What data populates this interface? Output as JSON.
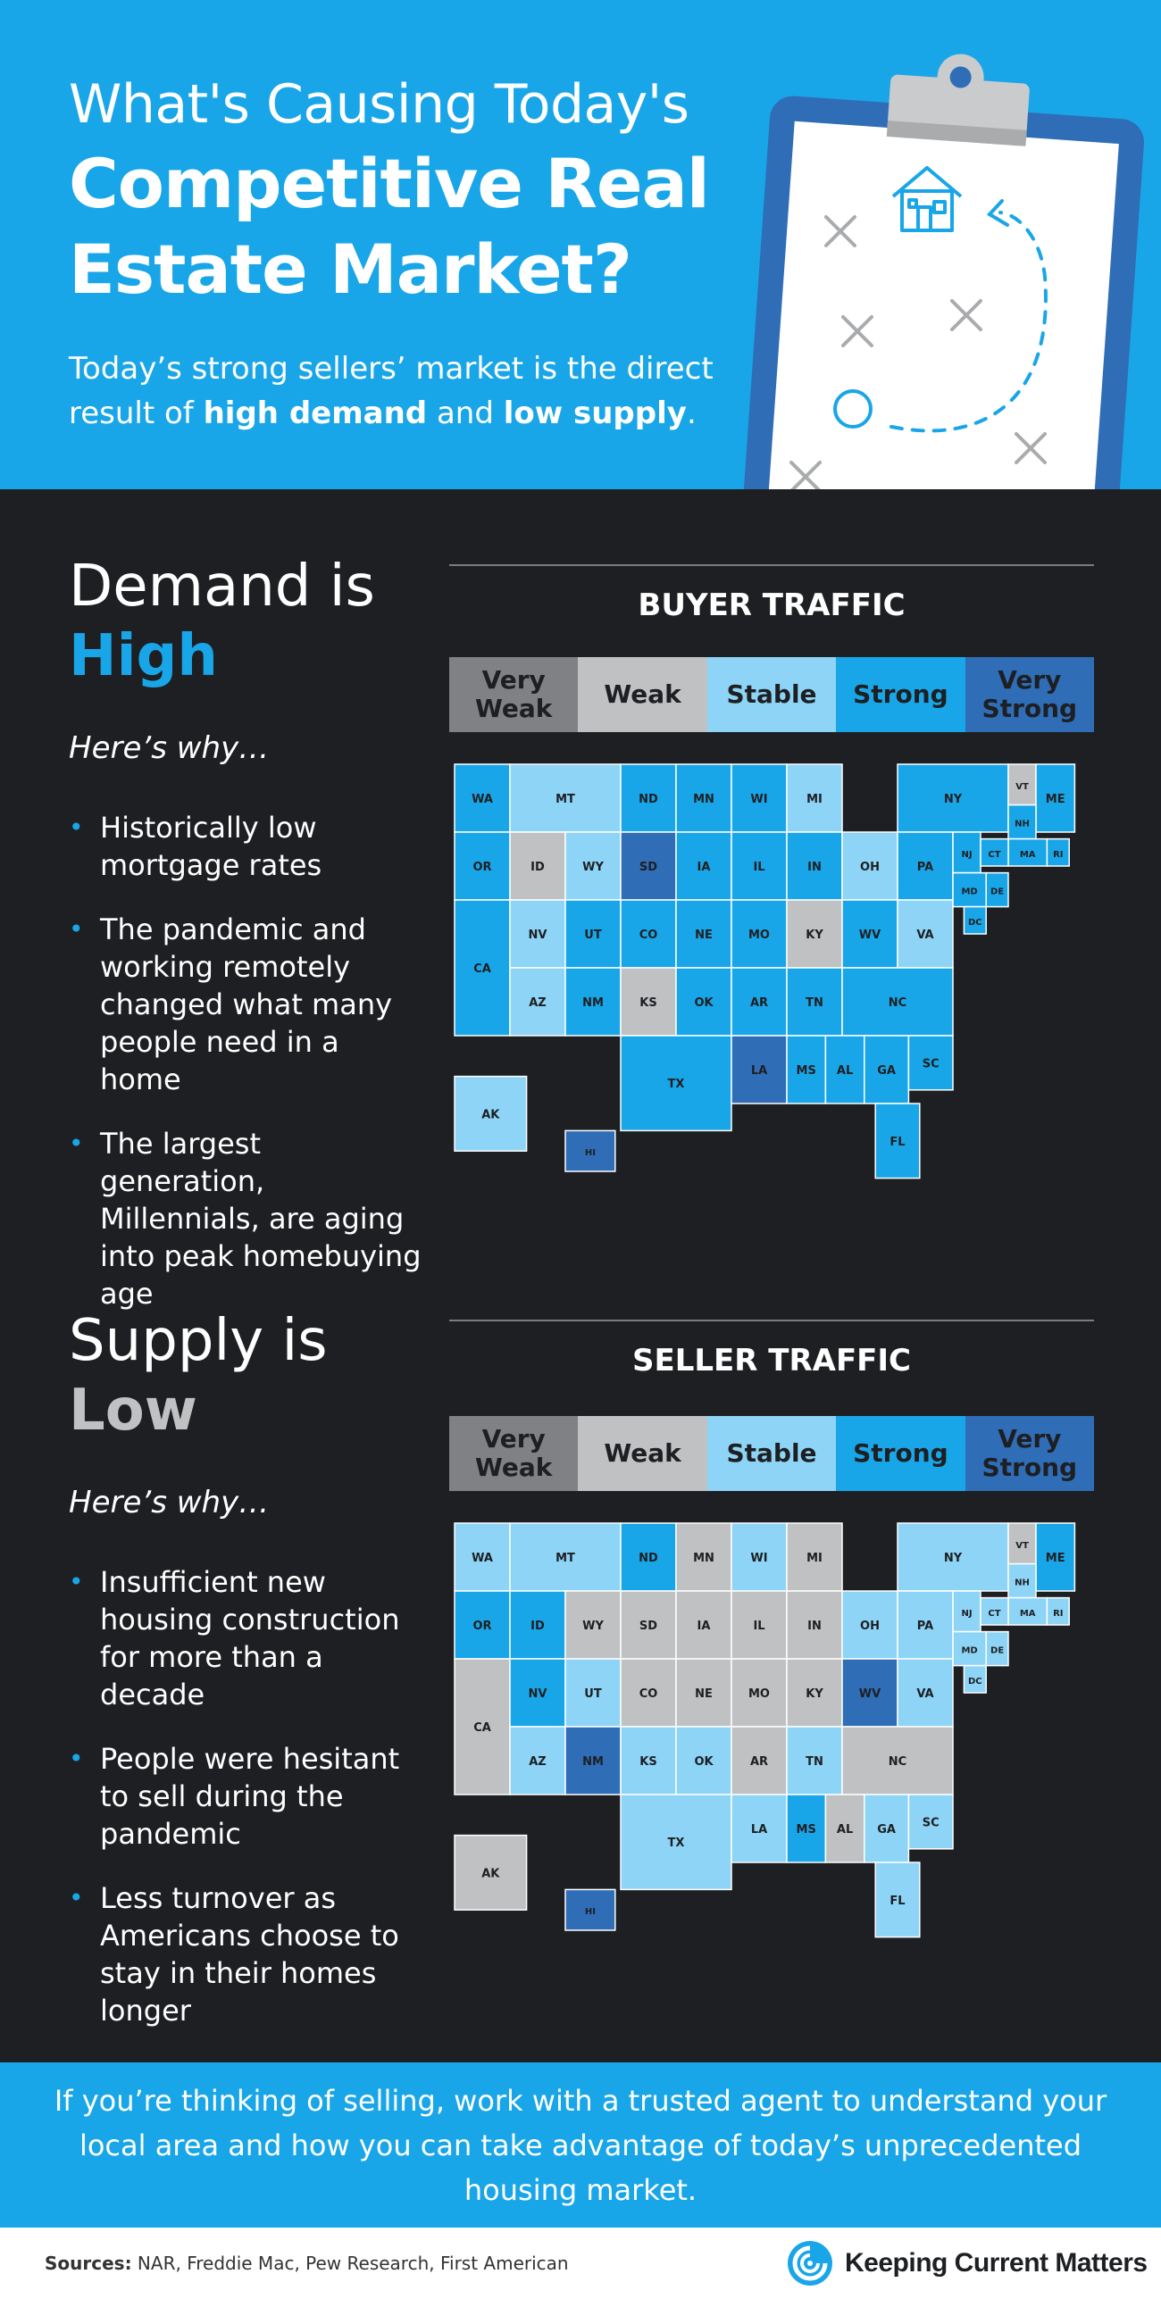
{
  "header": {
    "line1": "What's Causing Today's",
    "bold_title": "Competitive Real Estate Market?",
    "sub_pre": "Today’s strong sellers’ market is the direct result of ",
    "sub_b1": "high demand",
    "sub_mid": " and ",
    "sub_b2": "low supply",
    "sub_end": ".",
    "clipboard_icons": [
      "house-icon",
      "x-mark-icon",
      "circle-icon",
      "dashed-arrow-icon"
    ]
  },
  "demand": {
    "title_a": "Demand is",
    "title_b": "High",
    "why": "Here’s why…",
    "bullets": [
      "Historically low mortgage rates",
      "The pandemic and working remotely changed what many people need in a home",
      "The largest generation, Millennials, are aging into peak homebuying age"
    ],
    "panel_title": "BUYER TRAFFIC"
  },
  "supply": {
    "title_a": "Supply is",
    "title_b": "Low",
    "why": "Here’s why…",
    "bullets": [
      "Insufficient new housing construction for more than a decade",
      "People were hesitant to sell during the pandemic",
      "Less turnover as Americans choose to stay in their homes longer"
    ],
    "panel_title": "SELLER TRAFFIC"
  },
  "legend": [
    {
      "label": "Very Weak",
      "color": "#7f8184"
    },
    {
      "label": "Weak",
      "color": "#bfc1c3"
    },
    {
      "label": "Stable",
      "color": "#8dd4f6"
    },
    {
      "label": "Strong",
      "color": "#19a6e8"
    },
    {
      "label": "Very Strong",
      "color": "#2f6db7"
    }
  ],
  "levels": [
    "Very Weak",
    "Weak",
    "Stable",
    "Strong",
    "Very Strong"
  ],
  "buyer_traffic": {
    "WA": "Strong",
    "OR": "Strong",
    "CA": "Strong",
    "ID": "Weak",
    "NV": "Stable",
    "MT": "Stable",
    "WY": "Stable",
    "UT": "Strong",
    "AZ": "Stable",
    "CO": "Strong",
    "NM": "Strong",
    "ND": "Strong",
    "SD": "Very Strong",
    "NE": "Strong",
    "KS": "Weak",
    "OK": "Strong",
    "TX": "Strong",
    "MN": "Strong",
    "IA": "Strong",
    "MO": "Strong",
    "AR": "Strong",
    "LA": "Very Strong",
    "WI": "Strong",
    "IL": "Strong",
    "MS": "Strong",
    "MI": "Stable",
    "IN": "Strong",
    "OH": "Stable",
    "KY": "Weak",
    "TN": "Strong",
    "AL": "Strong",
    "GA": "Strong",
    "FL": "Strong",
    "SC": "Strong",
    "NC": "Strong",
    "VA": "Stable",
    "WV": "Strong",
    "PA": "Strong",
    "NY": "Strong",
    "ME": "Strong",
    "VT": "Weak",
    "NH": "Strong",
    "MA": "Strong",
    "RI": "Strong",
    "CT": "Strong",
    "NJ": "Strong",
    "DE": "Strong",
    "MD": "Strong",
    "DC": "Strong",
    "AK": "Stable",
    "HI": "Very Strong"
  },
  "seller_traffic": {
    "WA": "Stable",
    "OR": "Strong",
    "CA": "Weak",
    "ID": "Strong",
    "NV": "Strong",
    "MT": "Stable",
    "WY": "Weak",
    "UT": "Stable",
    "AZ": "Stable",
    "CO": "Weak",
    "NM": "Very Strong",
    "ND": "Strong",
    "SD": "Weak",
    "NE": "Weak",
    "KS": "Stable",
    "OK": "Stable",
    "TX": "Stable",
    "MN": "Weak",
    "IA": "Weak",
    "MO": "Weak",
    "AR": "Weak",
    "LA": "Stable",
    "WI": "Stable",
    "IL": "Weak",
    "MS": "Strong",
    "MI": "Weak",
    "IN": "Weak",
    "OH": "Stable",
    "KY": "Weak",
    "TN": "Stable",
    "AL": "Weak",
    "GA": "Stable",
    "FL": "Stable",
    "SC": "Stable",
    "NC": "Weak",
    "VA": "Stable",
    "WV": "Very Strong",
    "PA": "Stable",
    "NY": "Stable",
    "ME": "Strong",
    "VT": "Weak",
    "NH": "Stable",
    "MA": "Stable",
    "RI": "Stable",
    "CT": "Stable",
    "NJ": "Stable",
    "DE": "Stable",
    "MD": "Stable",
    "DC": "Stable",
    "AK": "Weak",
    "HI": "Very Strong"
  },
  "cta": "If you’re thinking of selling, work with a trusted agent to understand your local area and how you can take advantage of today’s unprecedented housing market.",
  "footer": {
    "sources_label": "Sources:",
    "sources_text": " NAR, Freddie Mac, Pew Research, First American",
    "brand": "Keeping Current Matters",
    "logo_icon": "kcm-swirl-icon"
  }
}
